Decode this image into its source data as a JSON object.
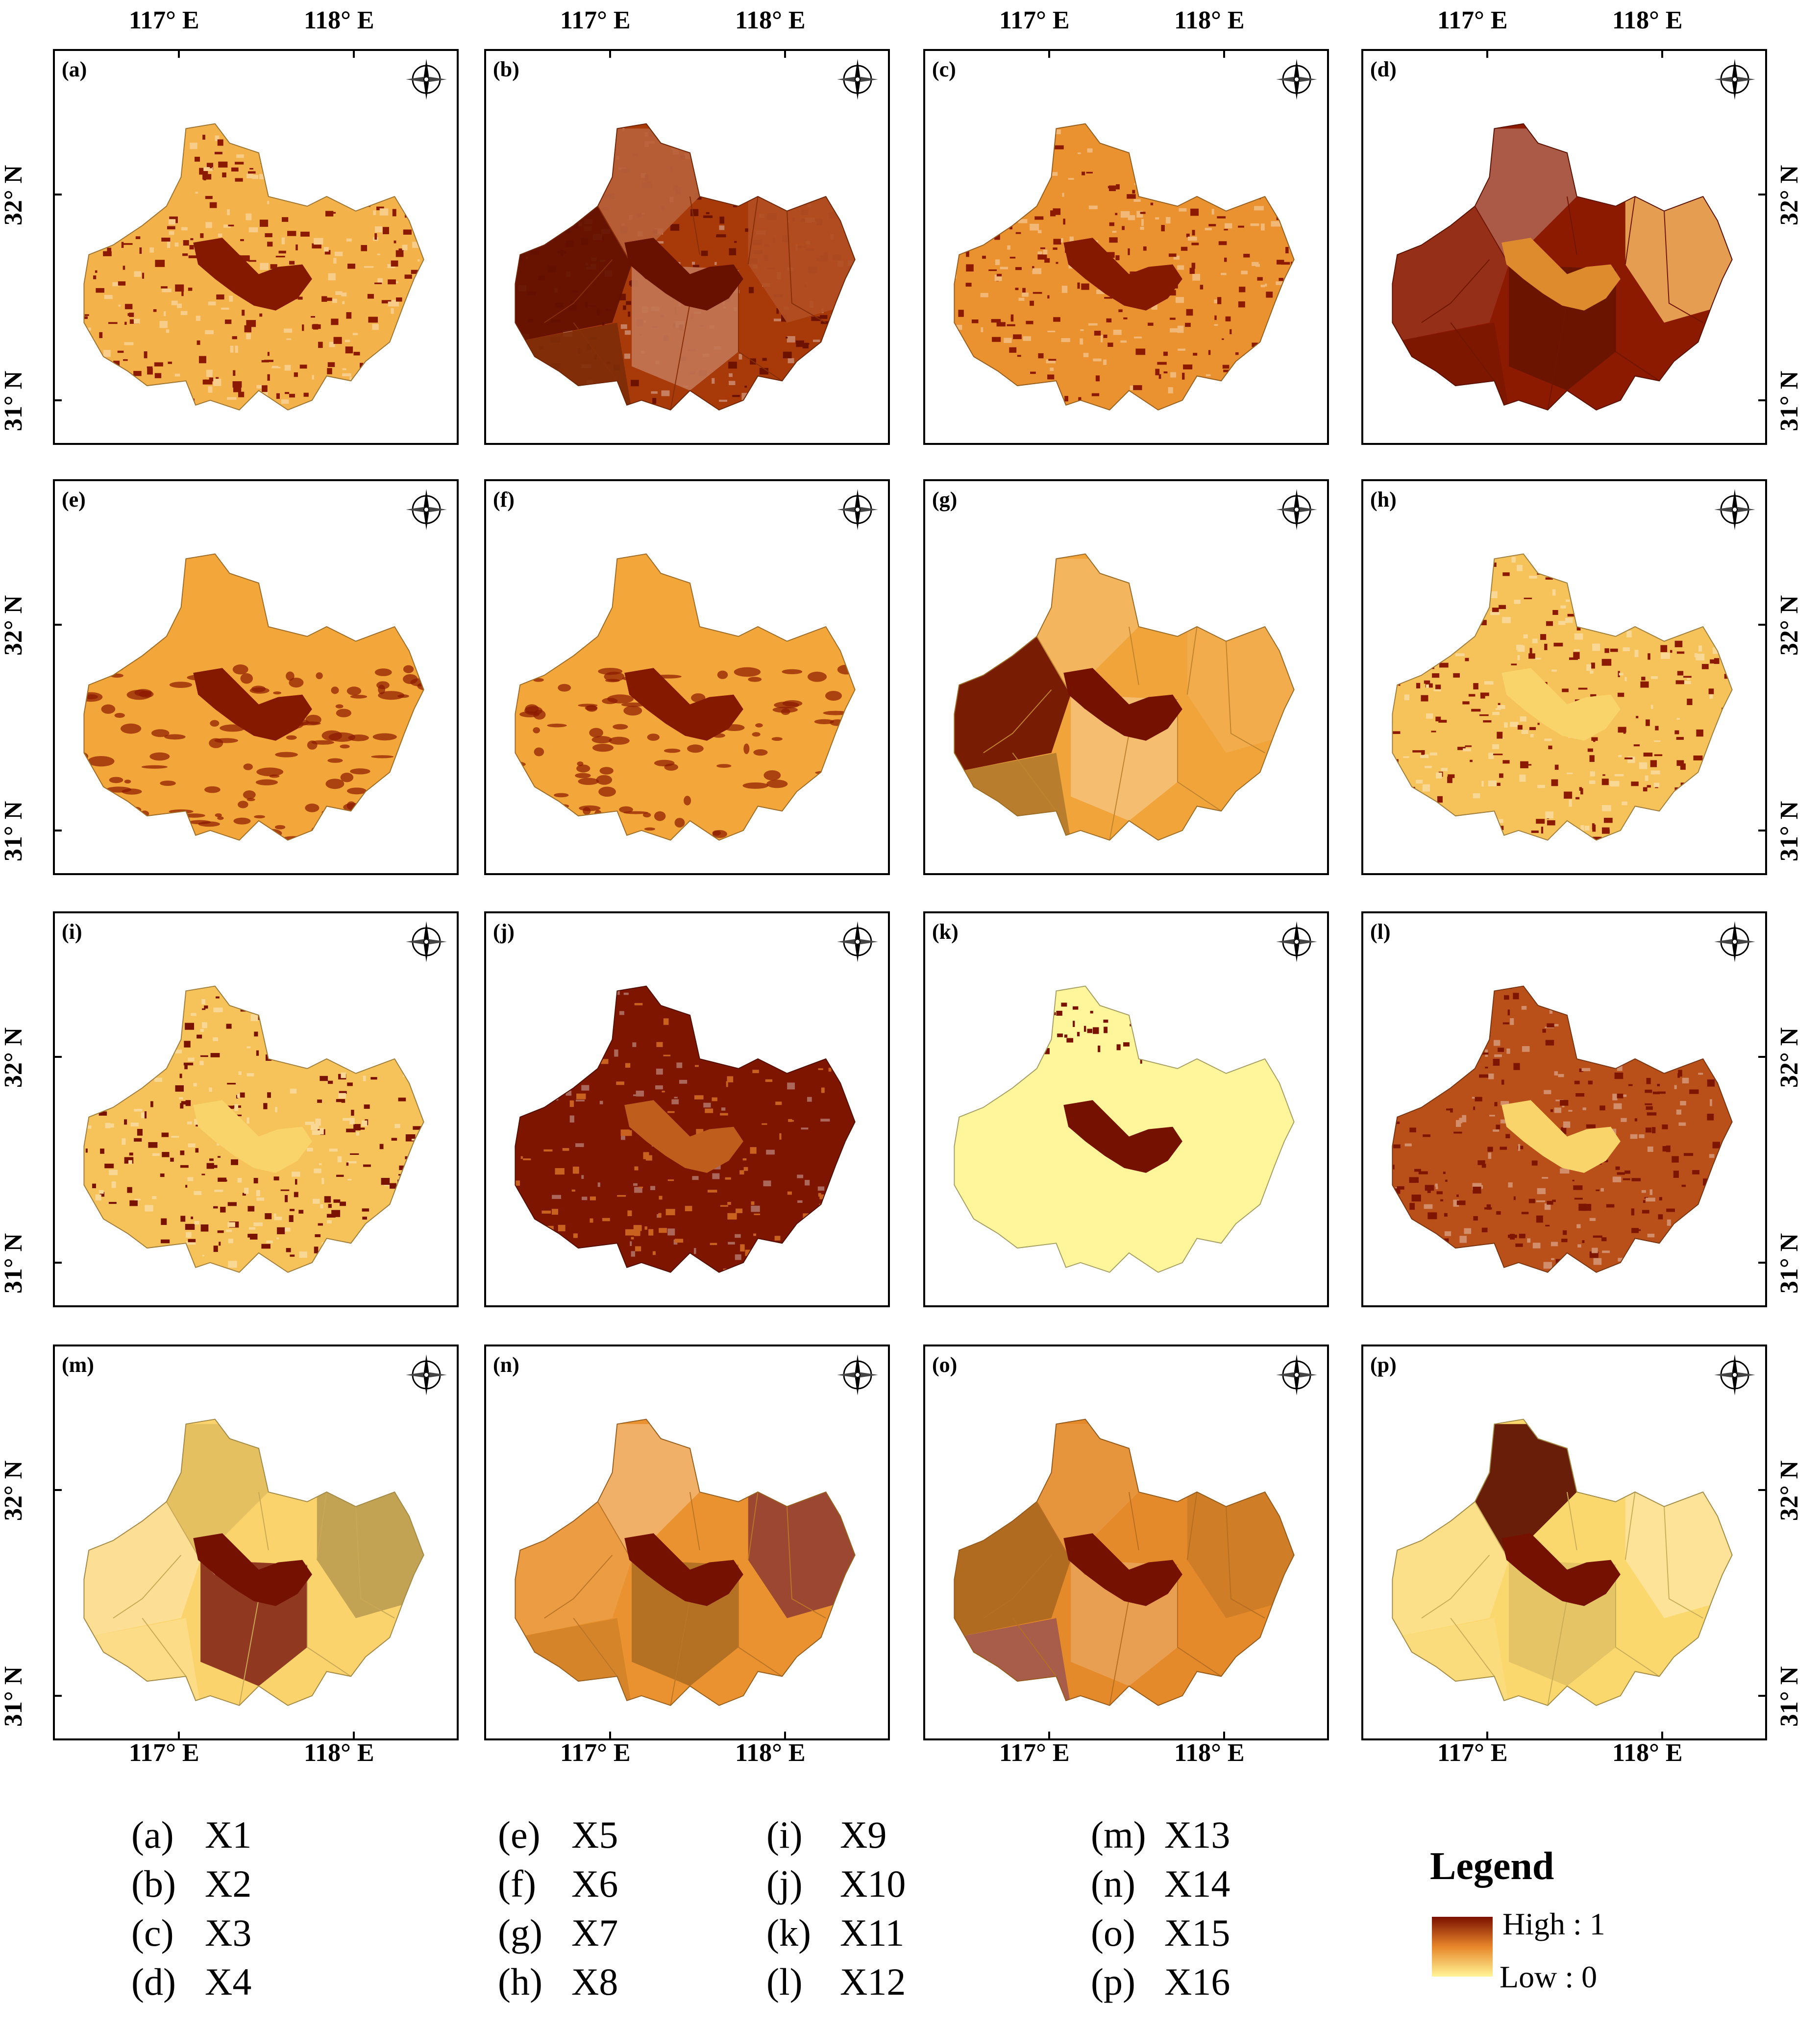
{
  "panels": [
    {
      "id": "a",
      "label": "(a)",
      "var": "X1",
      "style": "speckle",
      "base": "#f3b24a",
      "spots": "#8b1a00"
    },
    {
      "id": "b",
      "label": "(b)",
      "var": "X2",
      "style": "zones-dark",
      "base": "#a83a0a",
      "spots": "#6e1200"
    },
    {
      "id": "c",
      "label": "(c)",
      "var": "X3",
      "style": "speckle",
      "base": "#e9922f",
      "spots": "#8b1a00"
    },
    {
      "id": "d",
      "label": "(d)",
      "var": "X4",
      "style": "zones",
      "base": "#8b1a00",
      "spots": "#e9922f"
    },
    {
      "id": "e",
      "label": "(e)",
      "var": "X5",
      "style": "smooth",
      "base": "#f3a63a",
      "spots": "#8b1a00"
    },
    {
      "id": "f",
      "label": "(f)",
      "var": "X6",
      "style": "smooth",
      "base": "#f3a63a",
      "spots": "#8b1a00"
    },
    {
      "id": "g",
      "label": "(g)",
      "var": "X7",
      "style": "zones",
      "base": "#f0a43a",
      "spots": "#7a1200"
    },
    {
      "id": "h",
      "label": "(h)",
      "var": "X8",
      "style": "speckle",
      "base": "#f6c25a",
      "spots": "#8b1a00"
    },
    {
      "id": "i",
      "label": "(i)",
      "var": "X9",
      "style": "speckle",
      "base": "#f6c25a",
      "spots": "#7a1200"
    },
    {
      "id": "j",
      "label": "(j)",
      "var": "X10",
      "style": "dark",
      "base": "#7e1500",
      "spots": "#c9621f"
    },
    {
      "id": "k",
      "label": "(k)",
      "var": "X11",
      "style": "light",
      "base": "#fff59a",
      "spots": "#7a1200"
    },
    {
      "id": "l",
      "label": "(l)",
      "var": "X12",
      "style": "speckle",
      "base": "#b9501a",
      "spots": "#7e1500"
    },
    {
      "id": "m",
      "label": "(m)",
      "var": "X13",
      "style": "zones",
      "base": "#fbd36c",
      "spots": "#7a1200"
    },
    {
      "id": "n",
      "label": "(n)",
      "var": "X14",
      "style": "zones",
      "base": "#e9922f",
      "spots": "#7a1200"
    },
    {
      "id": "o",
      "label": "(o)",
      "var": "X15",
      "style": "zones",
      "base": "#e48a2a",
      "spots": "#7a1200"
    },
    {
      "id": "p",
      "label": "(p)",
      "var": "X16",
      "style": "zones",
      "base": "#fbd86e",
      "spots": "#7a1200"
    }
  ],
  "axes": {
    "lon": [
      "117° E",
      "118° E"
    ],
    "lat": [
      "32° N",
      "31° N"
    ]
  },
  "legend": {
    "title": "Legend",
    "high": "High : 1",
    "low": "Low : 0",
    "colors": {
      "high": "#7a0f00",
      "mid": "#e8862a",
      "low": "#fff596"
    }
  }
}
